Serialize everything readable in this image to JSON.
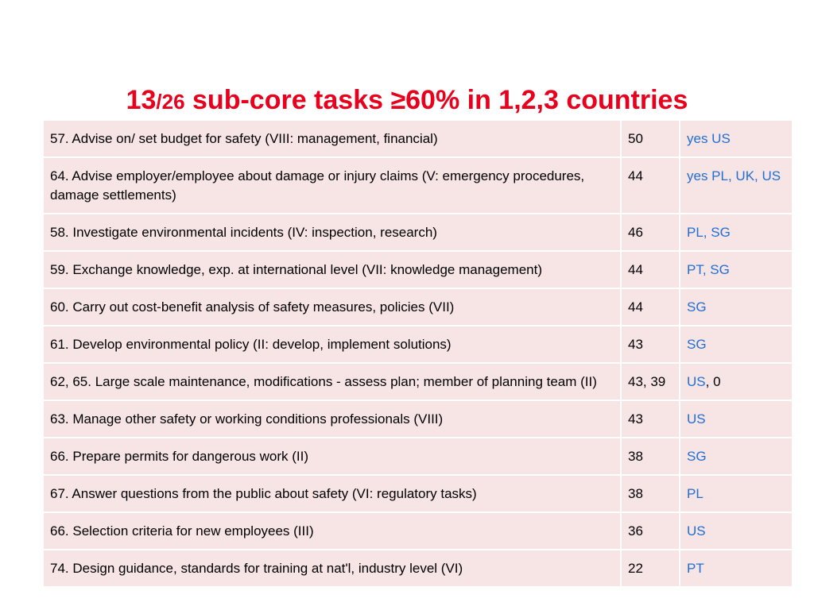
{
  "title": {
    "main_a": "13",
    "main_b": "/26",
    "main_c": " sub-core tasks ≥60% in 1,2,3 countries"
  },
  "colors": {
    "title": "#e8001c",
    "row_bg": "#f7e4e5",
    "country_text": "#1f6fd6"
  },
  "rows": [
    {
      "task": "57. Advise on/ set budget for safety (VIII: management, financial)",
      "score": "50",
      "countries": "yes US",
      "suffix": ""
    },
    {
      "task": "64. Advise employer/employee about damage or injury claims (V: emergency procedures, damage settlements)",
      "score": "44",
      "countries": "yes PL, UK, US",
      "suffix": ""
    },
    {
      "task": "58. Investigate environmental incidents (IV: inspection, research)",
      "score": "46",
      "countries": "PL, SG",
      "suffix": ""
    },
    {
      "task": "59. Exchange knowledge, exp. at international level (VII: knowledge management)",
      "score": "44",
      "countries": "PT, SG",
      "suffix": ""
    },
    {
      "task": "60. Carry out cost-benefit analysis of safety measures, policies (VII)",
      "score": "44",
      "countries": "SG",
      "suffix": ""
    },
    {
      "task": "61. Develop environmental policy (II: develop, implement solutions)",
      "score": "43",
      "countries": "SG",
      "suffix": ""
    },
    {
      "task": "62, 65. Large scale maintenance, modifications - assess plan; member of planning team (II)",
      "score": "43, 39",
      "countries": "US",
      "suffix": ", 0"
    },
    {
      "task": "63. Manage other safety or working conditions professionals (VIII)",
      "score": "43",
      "countries": "US",
      "suffix": ""
    },
    {
      "task": "66. Prepare permits for dangerous work (II)",
      "score": "38",
      "countries": "SG",
      "suffix": ""
    },
    {
      "task": "67. Answer questions from the public about safety (VI: regulatory tasks)",
      "score": "38",
      "countries": "PL",
      "suffix": ""
    },
    {
      "task": "66. Selection criteria for new employees (III)",
      "score": "36",
      "countries": "US",
      "suffix": ""
    },
    {
      "task": "74. Design guidance, standards for training at nat'l, industry level (VI)",
      "score": "22",
      "countries": "PT",
      "suffix": ""
    }
  ]
}
